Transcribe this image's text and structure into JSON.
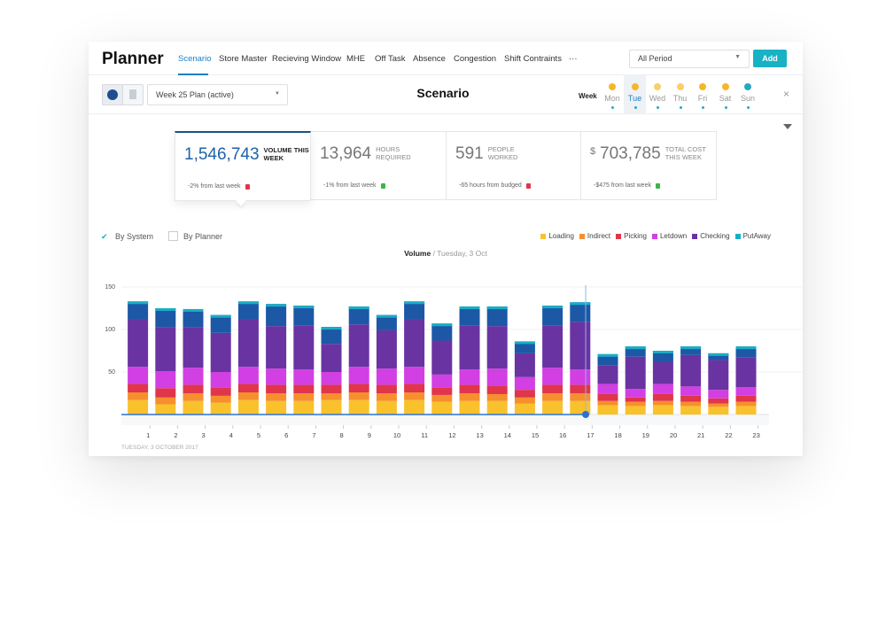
{
  "header": {
    "title": "Planner",
    "tabs": [
      "Scenario",
      "Store Master",
      "Recieving Window",
      "MHE",
      "Off Task",
      "Absence",
      "Congestion",
      "Shift Contraints",
      "···"
    ],
    "period": "All Period",
    "add": "Add"
  },
  "toolbar": {
    "plan": "Week 25 Plan (active)",
    "title": "Scenario",
    "week": "Week",
    "days": [
      "Mon",
      "Tue",
      "Wed",
      "Thu",
      "Fri",
      "Sat",
      "Sun"
    ],
    "close": "×"
  },
  "kpis": [
    {
      "value": "1,546,743",
      "label": "VOLUME THIS WEEK",
      "change": "-2% from last week"
    },
    {
      "value": "13,964",
      "label": "HOURS REQUIRED",
      "change": "-1% from last week"
    },
    {
      "value": "591",
      "label": "PEOPLE WORKED",
      "change": "-65 hours from budged"
    },
    {
      "currency": "$",
      "value": "703,785",
      "label": "TOTAL COST THIS WEEK",
      "change": "-$475 from last week"
    }
  ],
  "toggles": [
    "By System",
    "By Planner"
  ],
  "chart_data": {
    "type": "bar",
    "stacked": true,
    "title": "Volume",
    "subtitle": "/ Tuesday, 3  Oct",
    "xlabel": "TUESDAY, 3 OCTOBER 2017",
    "categories": [
      "1",
      "2",
      "3",
      "4",
      "5",
      "6",
      "7",
      "8",
      "9",
      "10",
      "11",
      "12",
      "13",
      "14",
      "15",
      "16",
      "17",
      "18",
      "19",
      "20",
      "21",
      "22",
      "23"
    ],
    "ylim": [
      0,
      150
    ],
    "yticks": [
      50,
      100,
      150
    ],
    "grid": true,
    "legend": "top-right",
    "series": [
      {
        "name": "Loading",
        "color": "#f9c12c",
        "values": [
          17,
          12,
          16,
          14,
          17,
          16,
          16,
          17,
          17,
          16,
          17,
          15,
          16,
          16,
          13,
          16,
          16,
          11,
          10,
          11,
          10,
          9,
          10
        ]
      },
      {
        "name": "Indirect",
        "color": "#f68f2e",
        "values": [
          9,
          8,
          9,
          8,
          9,
          9,
          9,
          8,
          9,
          9,
          9,
          8,
          9,
          8,
          7,
          9,
          9,
          5,
          5,
          5,
          5,
          4,
          5
        ]
      },
      {
        "name": "Picking",
        "color": "#e0354b",
        "values": [
          10,
          11,
          10,
          10,
          10,
          10,
          10,
          10,
          10,
          10,
          10,
          9,
          10,
          10,
          9,
          10,
          10,
          8,
          5,
          8,
          7,
          6,
          7
        ]
      },
      {
        "name": "Letdown",
        "color": "#d23fe3",
        "values": [
          20,
          20,
          20,
          18,
          20,
          19,
          18,
          15,
          20,
          19,
          20,
          15,
          18,
          20,
          15,
          20,
          18,
          12,
          10,
          12,
          11,
          10,
          10
        ]
      },
      {
        "name": "Checking",
        "color": "#6a33a2",
        "values": [
          56,
          52,
          48,
          46,
          56,
          50,
          52,
          33,
          50,
          45,
          56,
          40,
          52,
          50,
          28,
          50,
          56,
          22,
          38,
          26,
          37,
          35,
          35
        ]
      },
      {
        "name": "PutAway",
        "color": "#19aec6",
        "values": [
          21,
          22,
          21,
          21,
          21,
          26,
          23,
          20,
          21,
          18,
          21,
          20,
          22,
          23,
          14,
          23,
          23,
          13,
          12,
          13,
          10,
          8,
          13
        ]
      }
    ]
  }
}
